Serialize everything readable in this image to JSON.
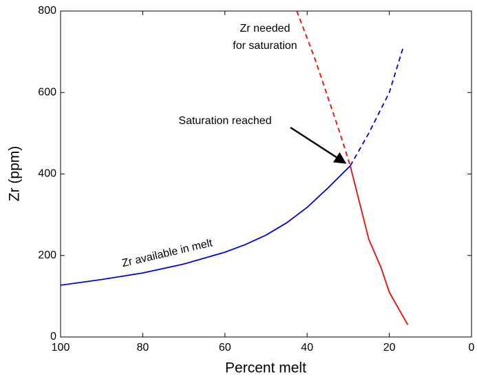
{
  "chart_data": {
    "type": "line",
    "xlabel": "Percent melt",
    "ylabel": "Zr (ppm)",
    "xlim": [
      100,
      0
    ],
    "xticks": [
      100,
      80,
      60,
      40,
      20,
      0
    ],
    "ylim": [
      0,
      800
    ],
    "yticks": [
      0,
      200,
      400,
      600,
      800
    ],
    "series": [
      {
        "name": "Zr available in melt",
        "color": "#0000cc",
        "dashed": false,
        "x": [
          100,
          90,
          80,
          70,
          60,
          55,
          50,
          45,
          40,
          35,
          29.5
        ],
        "values": [
          127,
          141,
          157,
          179,
          208,
          227,
          250,
          280,
          318,
          365,
          420
        ]
      },
      {
        "color": "#0000cc",
        "dashed": true,
        "x": [
          29.5,
          25,
          20,
          16.5
        ],
        "values": [
          420,
          500,
          600,
          715
        ]
      },
      {
        "name": "Zr needed for saturation",
        "color": "#ff0000",
        "dashed": true,
        "x": [
          42.5,
          38,
          35,
          32,
          29.5
        ],
        "values": [
          800,
          680,
          590,
          500,
          420
        ]
      },
      {
        "color": "#ff0000",
        "dashed": false,
        "x": [
          29.5,
          27,
          25,
          22,
          20,
          17.5,
          15.5
        ],
        "values": [
          420,
          320,
          240,
          170,
          110,
          65,
          30
        ]
      }
    ],
    "annotations": [
      {
        "lines": [
          "Zr needed",
          "for saturation"
        ]
      },
      {
        "text": "Saturation reached"
      }
    ]
  }
}
